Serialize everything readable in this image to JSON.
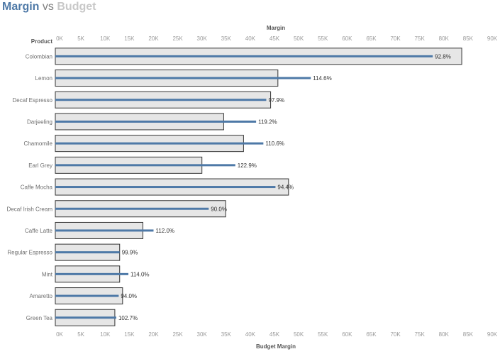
{
  "title": {
    "part1": "Margin",
    "part2": "vs",
    "part3": "Budget"
  },
  "colors": {
    "margin": "#4e79a7",
    "budget_fill": "#e6e6e6",
    "budget_stroke": "#333333",
    "title_vs": "#7f7f7f",
    "title_budget": "#c8c8c8"
  },
  "chart_data": {
    "type": "bar",
    "subtype": "bullet",
    "top_axis_title": "Margin",
    "bottom_axis_title": "Budget Margin",
    "row_header": "Product",
    "xlim": [
      0,
      90000
    ],
    "ticks": [
      "0K",
      "5K",
      "10K",
      "15K",
      "20K",
      "25K",
      "30K",
      "35K",
      "40K",
      "45K",
      "50K",
      "55K",
      "60K",
      "65K",
      "70K",
      "75K",
      "80K",
      "85K",
      "90K"
    ],
    "categories": [
      "Colombian",
      "Lemon",
      "Decaf Espresso",
      "Darjeeling",
      "Chamomile",
      "Earl Grey",
      "Caffe Mocha",
      "Decaf Irish Cream",
      "Caffe Latte",
      "Regular Espresso",
      "Mint",
      "Amaretto",
      "Green Tea"
    ],
    "series": [
      {
        "name": "Budget Margin",
        "values": [
          84000,
          46000,
          44500,
          34800,
          38900,
          30300,
          48200,
          35200,
          18100,
          13300,
          13300,
          13900,
          12300
        ]
      },
      {
        "name": "Margin",
        "values": [
          78000,
          52800,
          43600,
          41500,
          43000,
          37200,
          45500,
          31700,
          20300,
          13300,
          15100,
          13100,
          12600
        ]
      }
    ],
    "labels": [
      "92.8%",
      "114.6%",
      "97.9%",
      "119.2%",
      "110.6%",
      "122.9%",
      "94.4%",
      "90.0%",
      "112.0%",
      "99.9%",
      "114.0%",
      "94.0%",
      "102.7%"
    ]
  }
}
